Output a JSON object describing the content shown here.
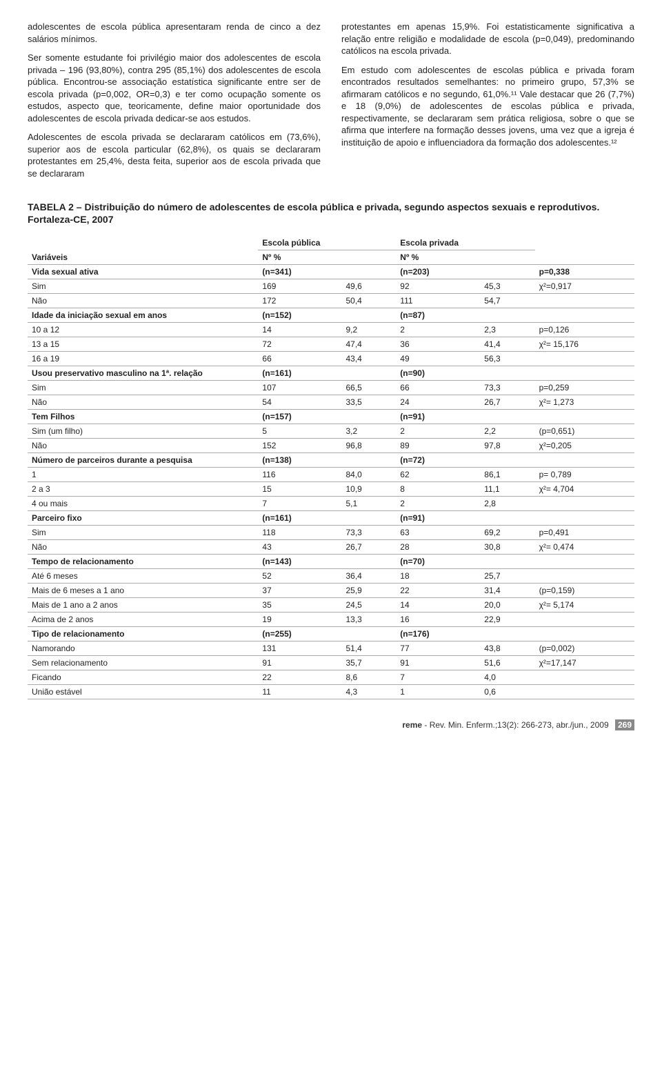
{
  "paragraphs": {
    "left": [
      "adolescentes de escola pública apresentaram renda de cinco a dez salários mínimos.",
      "Ser somente estudante foi privilégio maior dos adolescentes de escola privada – 196 (93,80%), contra 295 (85,1%) dos adolescentes de escola pública. Encontrou-se associação estatística significante entre ser de escola privada (p=0,002, OR=0,3) e ter como ocupação somente os estudos, aspecto que, teoricamente, define maior oportunidade dos adolescentes de escola privada dedicar-se aos estudos.",
      "Adolescentes de escola privada se declararam católicos em (73,6%), superior aos de escola particular (62,8%), os quais se declararam protestantes em 25,4%, desta feita, superior aos de escola privada que se declararam"
    ],
    "right": [
      "protestantes em apenas 15,9%. Foi estatisticamente significativa a relação entre religião e modalidade de escola (p=0,049), predominando católicos na escola privada.",
      "Em estudo com adolescentes de escolas pública e privada foram encontrados resultados semelhantes: no primeiro grupo, 57,3% se afirmaram católicos e no segundo, 61,0%.¹¹ Vale destacar que 26 (7,7%) e 18 (9,0%) de adolescentes de escolas pública e privada, respectivamente, se declararam sem prática religiosa, sobre o que se afirma que interfere na formação desses jovens, uma vez que a igreja é instituição de apoio e influenciadora da formação dos adolescentes.¹²"
    ]
  },
  "table_title": "TABELA 2 – Distribuição do número de adolescentes de escola pública e privada, segundo aspectos sexuais e reprodutivos. Fortaleza-CE, 2007",
  "headers": {
    "var": "Variáveis",
    "pub": "Escola pública",
    "priv": "Escola privada",
    "npct": "Nº %"
  },
  "rows": [
    {
      "section": true,
      "label": "Vida sexual ativa",
      "pub_n": "(n=341)",
      "pub_p": "",
      "priv_n": "(n=203)",
      "priv_p": "",
      "stat": "p=0,338"
    },
    {
      "label": "Sim",
      "pub_n": "169",
      "pub_p": "49,6",
      "priv_n": "92",
      "priv_p": "45,3",
      "stat": "χ²=0,917"
    },
    {
      "label": "Não",
      "pub_n": "172",
      "pub_p": "50,4",
      "priv_n": "111",
      "priv_p": "54,7",
      "stat": ""
    },
    {
      "section": true,
      "label": "Idade da iniciação sexual em anos",
      "pub_n": "(n=152)",
      "pub_p": "",
      "priv_n": "(n=87)",
      "priv_p": "",
      "stat": ""
    },
    {
      "label": "10 a 12",
      "pub_n": "14",
      "pub_p": "9,2",
      "priv_n": "2",
      "priv_p": "2,3",
      "stat": "p=0,126"
    },
    {
      "label": "13 a 15",
      "pub_n": "72",
      "pub_p": "47,4",
      "priv_n": "36",
      "priv_p": "41,4",
      "stat": "χ²= 15,176"
    },
    {
      "label": "16 a 19",
      "pub_n": "66",
      "pub_p": "43,4",
      "priv_n": "49",
      "priv_p": "56,3",
      "stat": ""
    },
    {
      "section": true,
      "label": "Usou preservativo masculino na 1ª. relação",
      "pub_n": "(n=161)",
      "pub_p": "",
      "priv_n": "(n=90)",
      "priv_p": "",
      "stat": ""
    },
    {
      "label": "Sim",
      "pub_n": "107",
      "pub_p": "66,5",
      "priv_n": "66",
      "priv_p": "73,3",
      "stat": "p=0,259"
    },
    {
      "label": "Não",
      "pub_n": "54",
      "pub_p": "33,5",
      "priv_n": "24",
      "priv_p": "26,7",
      "stat": "χ²= 1,273"
    },
    {
      "section": true,
      "label": "Tem Filhos",
      "pub_n": "(n=157)",
      "pub_p": "",
      "priv_n": "(n=91)",
      "priv_p": "",
      "stat": ""
    },
    {
      "label": "Sim (um filho)",
      "pub_n": "5",
      "pub_p": "3,2",
      "priv_n": "2",
      "priv_p": "2,2",
      "stat": "(p=0,651)"
    },
    {
      "label": "Não",
      "pub_n": "152",
      "pub_p": "96,8",
      "priv_n": "89",
      "priv_p": "97,8",
      "stat": "χ²=0,205"
    },
    {
      "section": true,
      "label": "Número de parceiros durante a pesquisa",
      "pub_n": "(n=138)",
      "pub_p": "",
      "priv_n": "(n=72)",
      "priv_p": "",
      "stat": ""
    },
    {
      "label": "1",
      "pub_n": "116",
      "pub_p": "84,0",
      "priv_n": "62",
      "priv_p": "86,1",
      "stat": "p= 0,789"
    },
    {
      "label": "2 a 3",
      "pub_n": "15",
      "pub_p": "10,9",
      "priv_n": "8",
      "priv_p": "11,1",
      "stat": "χ²= 4,704"
    },
    {
      "label": "4 ou mais",
      "pub_n": "7",
      "pub_p": "5,1",
      "priv_n": "2",
      "priv_p": "2,8",
      "stat": ""
    },
    {
      "section": true,
      "label": "Parceiro fixo",
      "pub_n": "(n=161)",
      "pub_p": "",
      "priv_n": "(n=91)",
      "priv_p": "",
      "stat": ""
    },
    {
      "label": "Sim",
      "pub_n": "118",
      "pub_p": "73,3",
      "priv_n": "63",
      "priv_p": "69,2",
      "stat": "p=0,491"
    },
    {
      "label": "Não",
      "pub_n": "43",
      "pub_p": "26,7",
      "priv_n": "28",
      "priv_p": "30,8",
      "stat": "χ²= 0,474"
    },
    {
      "section": true,
      "label": "Tempo de relacionamento",
      "pub_n": "(n=143)",
      "pub_p": "",
      "priv_n": "(n=70)",
      "priv_p": "",
      "stat": ""
    },
    {
      "label": "Até 6 meses",
      "pub_n": "52",
      "pub_p": "36,4",
      "priv_n": "18",
      "priv_p": "25,7",
      "stat": ""
    },
    {
      "label": "Mais de 6 meses a 1 ano",
      "pub_n": "37",
      "pub_p": "25,9",
      "priv_n": "22",
      "priv_p": "31,4",
      "stat": "(p=0,159)"
    },
    {
      "label": "Mais de 1 ano a 2 anos",
      "pub_n": "35",
      "pub_p": "24,5",
      "priv_n": "14",
      "priv_p": "20,0",
      "stat": "χ²= 5,174"
    },
    {
      "label": "Acima de 2 anos",
      "pub_n": "19",
      "pub_p": "13,3",
      "priv_n": "16",
      "priv_p": "22,9",
      "stat": ""
    },
    {
      "section": true,
      "label": "Tipo de relacionamento",
      "pub_n": "(n=255)",
      "pub_p": "",
      "priv_n": "(n=176)",
      "priv_p": "",
      "stat": ""
    },
    {
      "label": "Namorando",
      "pub_n": "131",
      "pub_p": "51,4",
      "priv_n": "77",
      "priv_p": "43,8",
      "stat": "(p=0,002)"
    },
    {
      "label": "Sem relacionamento",
      "pub_n": "91",
      "pub_p": "35,7",
      "priv_n": "91",
      "priv_p": "51,6",
      "stat": "χ²=17,147"
    },
    {
      "label": "Ficando",
      "pub_n": "22",
      "pub_p": "8,6",
      "priv_n": "7",
      "priv_p": "4,0",
      "stat": ""
    },
    {
      "label": "União estável",
      "pub_n": "11",
      "pub_p": "4,3",
      "priv_n": "1",
      "priv_p": "0,6",
      "stat": ""
    }
  ],
  "footer": {
    "journal": "reme - Rev. Min. Enferm.;13(2): 266-273, abr./jun., 2009",
    "page": "269"
  }
}
